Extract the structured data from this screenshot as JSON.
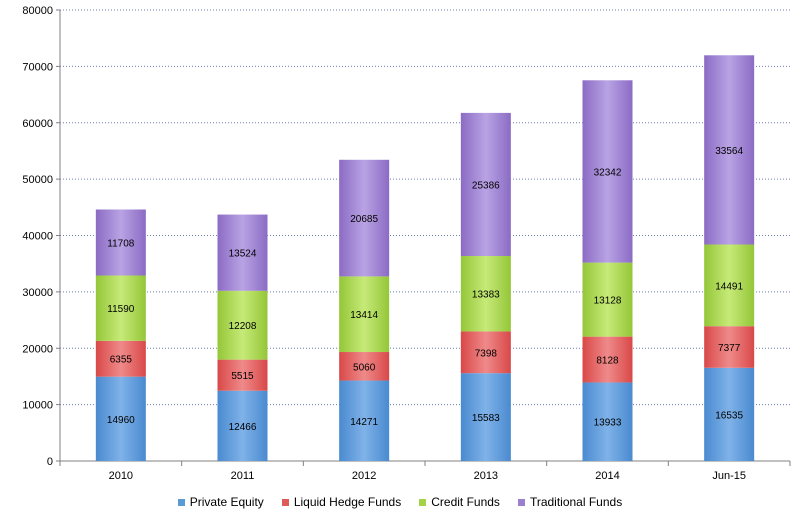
{
  "chart_data": {
    "type": "bar",
    "stacked": true,
    "categories": [
      "2010",
      "2011",
      "2012",
      "2013",
      "2014",
      "Jun-15"
    ],
    "series": [
      {
        "name": "Private Equity",
        "color": "#5b9bd5",
        "values": [
          14960,
          12466,
          14271,
          15583,
          13933,
          16535
        ]
      },
      {
        "name": "Liquid Hedge Funds",
        "color": "#e05a5a",
        "values": [
          6355,
          5515,
          5060,
          7398,
          8128,
          7377
        ]
      },
      {
        "name": "Credit Funds",
        "color": "#a4d34a",
        "values": [
          11590,
          12208,
          13414,
          13383,
          13128,
          14491
        ]
      },
      {
        "name": "Traditional Funds",
        "color": "#9b7fd0",
        "values": [
          11708,
          13524,
          20685,
          25386,
          32342,
          33564
        ]
      }
    ],
    "y_ticks": [
      "0",
      "10000",
      "20000",
      "30000",
      "40000",
      "50000",
      "60000",
      "70000",
      "80000"
    ],
    "ylim": [
      0,
      80000
    ],
    "grid": true,
    "grid_style": "dotted",
    "legend_position": "bottom",
    "title": "",
    "xlabel": "",
    "ylabel": ""
  }
}
